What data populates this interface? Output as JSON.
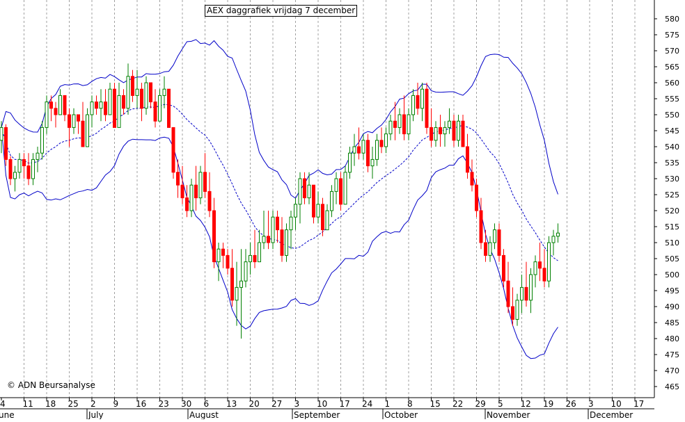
{
  "chart_data": {
    "type": "candlestick",
    "title": "AEX daggrafiek vrijdag 7 december",
    "copyright": "© ADN Beursanalyse",
    "ylim": [
      460,
      585
    ],
    "y_ticks": [
      465,
      470,
      475,
      480,
      485,
      490,
      495,
      500,
      505,
      510,
      515,
      520,
      525,
      530,
      535,
      540,
      545,
      550,
      555,
      560,
      565,
      570,
      575,
      580
    ],
    "x_day_ticks": [
      "4",
      "11",
      "18",
      "25",
      "2",
      "9",
      "16",
      "23",
      "30",
      "6",
      "13",
      "20",
      "27",
      "3",
      "10",
      "17",
      "24",
      "1",
      "8",
      "15",
      "22",
      "29",
      "5",
      "12",
      "19",
      "26",
      "3",
      "10",
      "17"
    ],
    "x_month_labels": [
      "une",
      "July",
      "August",
      "September",
      "October",
      "November",
      "December"
    ],
    "grid": "vertical dotted",
    "colors": {
      "up": "#008000",
      "down": "#ff0000",
      "bands": "#0000c8",
      "axis": "#000000"
    },
    "ohlc": [
      [
        542,
        548,
        538,
        546
      ],
      [
        546,
        547,
        534,
        536
      ],
      [
        536,
        537,
        528,
        530
      ],
      [
        530,
        534,
        526,
        532
      ],
      [
        532,
        538,
        530,
        536
      ],
      [
        536,
        538,
        530,
        534
      ],
      [
        534,
        538,
        528,
        530
      ],
      [
        530,
        538,
        528,
        536
      ],
      [
        536,
        540,
        532,
        538
      ],
      [
        538,
        548,
        536,
        546
      ],
      [
        546,
        556,
        544,
        554
      ],
      [
        554,
        556,
        548,
        552
      ],
      [
        552,
        554,
        546,
        550
      ],
      [
        550,
        558,
        550,
        556
      ],
      [
        556,
        556,
        548,
        550
      ],
      [
        550,
        552,
        540,
        546
      ],
      [
        546,
        552,
        544,
        550
      ],
      [
        550,
        550,
        544,
        548
      ],
      [
        548,
        554,
        540,
        540
      ],
      [
        540,
        552,
        540,
        550
      ],
      [
        550,
        556,
        546,
        554
      ],
      [
        554,
        556,
        550,
        552
      ],
      [
        552,
        558,
        548,
        554
      ],
      [
        554,
        558,
        548,
        550
      ],
      [
        550,
        560,
        550,
        558
      ],
      [
        558,
        560,
        546,
        546
      ],
      [
        546,
        560,
        546,
        556
      ],
      [
        556,
        558,
        550,
        552
      ],
      [
        552,
        566,
        550,
        562
      ],
      [
        562,
        564,
        554,
        556
      ],
      [
        556,
        564,
        552,
        558
      ],
      [
        558,
        560,
        548,
        552
      ],
      [
        552,
        562,
        550,
        560
      ],
      [
        560,
        560,
        552,
        554
      ],
      [
        554,
        558,
        546,
        548
      ],
      [
        548,
        558,
        548,
        556
      ],
      [
        556,
        562,
        552,
        558
      ],
      [
        558,
        558,
        546,
        546
      ],
      [
        546,
        546,
        530,
        532
      ],
      [
        532,
        536,
        524,
        528
      ],
      [
        528,
        534,
        522,
        524
      ],
      [
        524,
        528,
        518,
        520
      ],
      [
        520,
        530,
        518,
        528
      ],
      [
        528,
        534,
        520,
        524
      ],
      [
        524,
        534,
        522,
        532
      ],
      [
        532,
        538,
        524,
        526
      ],
      [
        526,
        532,
        518,
        520
      ],
      [
        520,
        524,
        502,
        504
      ],
      [
        504,
        510,
        498,
        508
      ],
      [
        508,
        510,
        502,
        506
      ],
      [
        506,
        508,
        500,
        502
      ],
      [
        502,
        508,
        490,
        492
      ],
      [
        492,
        504,
        484,
        496
      ],
      [
        496,
        508,
        480,
        498
      ],
      [
        498,
        508,
        496,
        504
      ],
      [
        504,
        510,
        500,
        506
      ],
      [
        506,
        514,
        502,
        504
      ],
      [
        504,
        514,
        504,
        510
      ],
      [
        510,
        520,
        508,
        512
      ],
      [
        512,
        520,
        508,
        510
      ],
      [
        510,
        520,
        508,
        518
      ],
      [
        518,
        520,
        510,
        514
      ],
      [
        514,
        518,
        504,
        506
      ],
      [
        506,
        516,
        504,
        514
      ],
      [
        514,
        520,
        508,
        518
      ],
      [
        518,
        524,
        514,
        522
      ],
      [
        522,
        532,
        516,
        530
      ],
      [
        530,
        532,
        522,
        524
      ],
      [
        524,
        532,
        522,
        528
      ],
      [
        528,
        528,
        516,
        518
      ],
      [
        518,
        526,
        516,
        522
      ],
      [
        522,
        524,
        512,
        514
      ],
      [
        514,
        522,
        514,
        520
      ],
      [
        520,
        528,
        518,
        526
      ],
      [
        526,
        532,
        522,
        530
      ],
      [
        530,
        532,
        520,
        522
      ],
      [
        522,
        534,
        522,
        532
      ],
      [
        532,
        540,
        530,
        538
      ],
      [
        538,
        544,
        534,
        540
      ],
      [
        540,
        546,
        536,
        538
      ],
      [
        538,
        544,
        536,
        542
      ],
      [
        542,
        544,
        532,
        534
      ],
      [
        534,
        540,
        530,
        536
      ],
      [
        536,
        544,
        534,
        542
      ],
      [
        542,
        546,
        538,
        540
      ],
      [
        540,
        546,
        538,
        544
      ],
      [
        544,
        550,
        542,
        548
      ],
      [
        548,
        554,
        542,
        546
      ],
      [
        546,
        552,
        544,
        550
      ],
      [
        550,
        556,
        542,
        544
      ],
      [
        544,
        552,
        542,
        550
      ],
      [
        550,
        558,
        548,
        556
      ],
      [
        556,
        560,
        550,
        552
      ],
      [
        552,
        560,
        548,
        558
      ],
      [
        558,
        560,
        544,
        546
      ],
      [
        546,
        552,
        540,
        542
      ],
      [
        542,
        548,
        540,
        546
      ],
      [
        546,
        550,
        540,
        544
      ],
      [
        544,
        548,
        540,
        546
      ],
      [
        546,
        552,
        544,
        548
      ],
      [
        548,
        550,
        540,
        542
      ],
      [
        542,
        550,
        540,
        548
      ],
      [
        548,
        550,
        540,
        540
      ],
      [
        540,
        544,
        530,
        532
      ],
      [
        532,
        536,
        526,
        528
      ],
      [
        528,
        530,
        518,
        520
      ],
      [
        520,
        524,
        508,
        510
      ],
      [
        510,
        514,
        504,
        506
      ],
      [
        506,
        512,
        504,
        510
      ],
      [
        510,
        516,
        508,
        514
      ],
      [
        514,
        516,
        504,
        506
      ],
      [
        506,
        508,
        496,
        498
      ],
      [
        498,
        504,
        488,
        490
      ],
      [
        490,
        496,
        484,
        486
      ],
      [
        486,
        494,
        484,
        492
      ],
      [
        492,
        500,
        488,
        496
      ],
      [
        496,
        504,
        490,
        492
      ],
      [
        492,
        502,
        488,
        500
      ],
      [
        500,
        506,
        496,
        504
      ],
      [
        504,
        510,
        498,
        502
      ],
      [
        502,
        508,
        496,
        498
      ],
      [
        498,
        512,
        496,
        510
      ],
      [
        510,
        514,
        506,
        512
      ],
      [
        512,
        516,
        510,
        513
      ]
    ]
  }
}
